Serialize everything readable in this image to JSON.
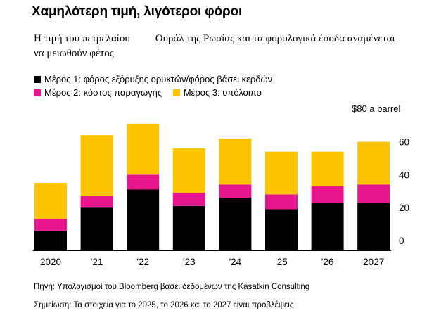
{
  "title": "Χαμηλότερη τιμή, λιγότεροι φόροι",
  "subtitle_part1": "Η τιμή του πετρελαίου",
  "subtitle_part2": "Ουράλ της Ρωσίας και τα φορολογικά έσοδα αναμένεται να μειωθούν φέτος",
  "unit_label": "$80 a barrel",
  "source": "Πηγή: Υπολογισμοί του Bloomberg βάσει δεδομένων της Kasatkin Consulting",
  "note": "Σημείωση: Τα στοιχεία για το 2025, το 2026 και το 2027 είναι προβλέψεις",
  "chart_data": {
    "type": "bar",
    "stacked": true,
    "categories": [
      "2020",
      "'21",
      "'22",
      "'23",
      "'24",
      "'25",
      "'26",
      "2027"
    ],
    "series": [
      {
        "name": "Μέρος 1: φόρος εξόρυξης ορυκτών/φόρος βάσει κερδών",
        "color": "#000000",
        "values": [
          12,
          26,
          37,
          27,
          32,
          25,
          29,
          29
        ]
      },
      {
        "name": "Μέρος 2: κόστος παραγωγής",
        "color": "#e8168c",
        "values": [
          7,
          7,
          9,
          8,
          8,
          9,
          10,
          11
        ]
      },
      {
        "name": "Μέρος 3: υπόλοιπο",
        "color": "#fcc300",
        "values": [
          22,
          37,
          31,
          27,
          28,
          26,
          21,
          26
        ]
      }
    ],
    "yticks": [
      0,
      20,
      40,
      60
    ],
    "ylim": [
      0,
      80
    ],
    "y_axis_position": "right",
    "grid": false,
    "legend_position": "top-left"
  }
}
